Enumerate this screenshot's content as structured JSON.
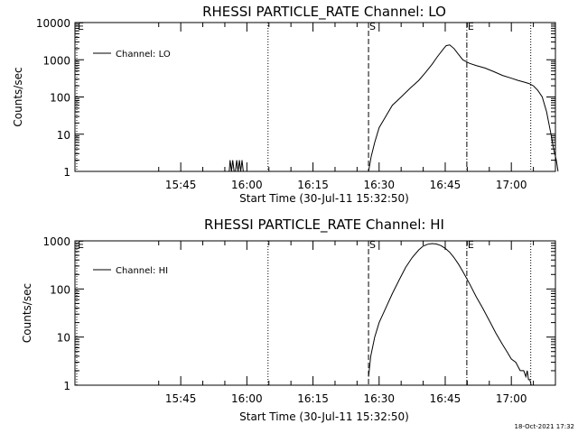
{
  "footer": {
    "timestamp": "18-Oct-2021 17:32"
  },
  "chart_data": [
    {
      "type": "line",
      "title": "RHESSI PARTICLE_RATE Channel: LO",
      "xlabel": "Start Time (30-Jul-11 15:32:50)",
      "ylabel": "Counts/sec",
      "yscale": "log",
      "ylim": [
        1,
        10000
      ],
      "xlim_minutes": [
        -11,
        98
      ],
      "x_tick_minutes": [
        13,
        28,
        43,
        58,
        73,
        88
      ],
      "x_tick_labels": [
        "15:45",
        "16:00",
        "16:15",
        "16:30",
        "16:45",
        "17:00"
      ],
      "y_ticks": [
        1,
        10,
        100,
        1000,
        10000
      ],
      "y_tick_labels": [
        "1",
        "10",
        "100",
        "1000",
        "10000"
      ],
      "grid": false,
      "legend": {
        "position": "top-left",
        "entries": [
          "Channel: LO"
        ]
      },
      "markers": [
        {
          "minute": -11,
          "style": "dotted",
          "label": "E"
        },
        {
          "minute": 32.8,
          "style": "dotted",
          "label": ""
        },
        {
          "minute": 55.6,
          "style": "dashed",
          "label": "S"
        },
        {
          "minute": 77.9,
          "style": "dashdot",
          "label": "E"
        },
        {
          "minute": 92.4,
          "style": "dotted",
          "label": ""
        }
      ],
      "series": [
        {
          "name": "Channel: LO",
          "x": [
            55.6,
            56.2,
            57,
            58,
            59.5,
            61,
            63,
            65,
            67,
            68.5,
            70,
            71.2,
            72.5,
            73.2,
            74,
            75,
            76,
            77,
            78.5,
            80,
            82,
            84,
            86,
            88,
            89.5,
            91,
            92,
            93,
            94,
            95,
            96,
            97,
            97.6,
            98.2,
            98.6
          ],
          "y": [
            1,
            2.5,
            6,
            15,
            30,
            60,
            100,
            170,
            280,
            450,
            750,
            1200,
            1900,
            2400,
            2500,
            2000,
            1400,
            1000,
            800,
            700,
            600,
            480,
            380,
            320,
            280,
            250,
            230,
            200,
            150,
            100,
            40,
            10,
            4,
            2,
            1
          ],
          "segments": [
            {
              "x": [
                24,
                24.2,
                24.5,
                24.8,
                25.1,
                25.4,
                25.7,
                26,
                26.3,
                26.6,
                26.9,
                27.2
              ],
              "y": [
                1,
                2,
                1,
                2,
                1,
                1,
                2,
                1,
                2,
                1,
                2,
                1
              ]
            }
          ]
        }
      ]
    },
    {
      "type": "line",
      "title": "RHESSI PARTICLE_RATE Channel: HI",
      "xlabel": "Start Time (30-Jul-11 15:32:50)",
      "ylabel": "Counts/sec",
      "yscale": "log",
      "ylim": [
        1,
        1000
      ],
      "xlim_minutes": [
        -11,
        98
      ],
      "x_tick_minutes": [
        13,
        28,
        43,
        58,
        73,
        88
      ],
      "x_tick_labels": [
        "15:45",
        "16:00",
        "16:15",
        "16:30",
        "16:45",
        "17:00"
      ],
      "y_ticks": [
        1,
        10,
        100,
        1000
      ],
      "y_tick_labels": [
        "1",
        "10",
        "100",
        "1000"
      ],
      "grid": false,
      "legend": {
        "position": "top-left",
        "entries": [
          "Channel: HI"
        ]
      },
      "markers": [
        {
          "minute": -11,
          "style": "dotted",
          "label": "E"
        },
        {
          "minute": 32.8,
          "style": "dotted",
          "label": ""
        },
        {
          "minute": 55.6,
          "style": "dashed",
          "label": "S"
        },
        {
          "minute": 77.9,
          "style": "dashdot",
          "label": "E"
        },
        {
          "minute": 92.4,
          "style": "dotted",
          "label": ""
        }
      ],
      "series": [
        {
          "name": "Channel: HI",
          "x": [
            55.6,
            56.1,
            57,
            58,
            59.5,
            61,
            62.5,
            64,
            65.5,
            67,
            68,
            69,
            70,
            71,
            72,
            73,
            74,
            75,
            76,
            77,
            78.5,
            80,
            81.5,
            83,
            84.5,
            86,
            87,
            88,
            89,
            90,
            90.8,
            91.3,
            91.6,
            91.9,
            92.2,
            92.5,
            92.8
          ],
          "y": [
            1.5,
            4,
            10,
            20,
            40,
            80,
            150,
            280,
            450,
            650,
            780,
            850,
            880,
            860,
            800,
            700,
            580,
            450,
            330,
            230,
            130,
            70,
            40,
            22,
            12,
            7,
            5,
            3.5,
            3,
            2,
            2,
            1.5,
            2,
            1.3,
            1.3,
            1,
            1
          ]
        }
      ]
    }
  ]
}
